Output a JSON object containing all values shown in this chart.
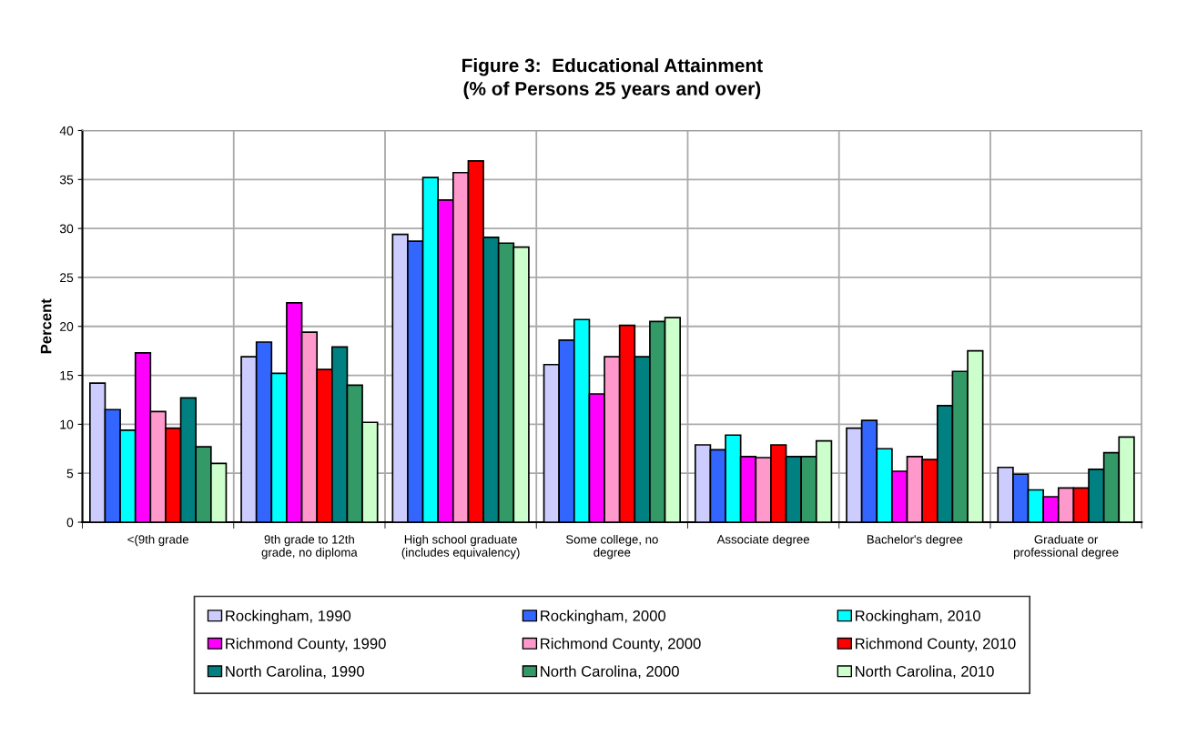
{
  "chart_data": {
    "type": "bar",
    "title": "Figure 3:  Educational Attainment\n(% of Persons 25 years and over)",
    "ylabel": "Percent",
    "categories": [
      "<(9th grade",
      "9th grade to 12th\ngrade, no diploma",
      "High school graduate\n(includes equivalency)",
      "Some college, no\ndegree",
      "Associate degree",
      "Bachelor's degree",
      "Graduate or\nprofessional degree"
    ],
    "series": [
      {
        "name": "Rockingham, 1990",
        "color": "#ccccff",
        "values": [
          14.2,
          16.9,
          29.4,
          16.1,
          7.9,
          9.6,
          5.6
        ]
      },
      {
        "name": "Rockingham, 2000",
        "color": "#3366ff",
        "values": [
          11.5,
          18.4,
          28.7,
          18.6,
          7.4,
          10.4,
          4.9
        ]
      },
      {
        "name": "Rockingham, 2010",
        "color": "#00ffff",
        "values": [
          9.4,
          15.2,
          35.2,
          20.7,
          8.9,
          7.5,
          3.3
        ]
      },
      {
        "name": "Richmond County, 1990",
        "color": "#ff00ff",
        "values": [
          17.3,
          22.4,
          32.9,
          13.1,
          6.7,
          5.2,
          2.6
        ]
      },
      {
        "name": "Richmond County, 2000",
        "color": "#ff99cc",
        "values": [
          11.3,
          19.4,
          35.7,
          16.9,
          6.6,
          6.7,
          3.5
        ]
      },
      {
        "name": "Richmond County, 2010",
        "color": "#ff0000",
        "values": [
          9.6,
          15.6,
          36.9,
          20.1,
          7.9,
          6.4,
          3.5
        ]
      },
      {
        "name": "North Carolina, 1990",
        "color": "#008080",
        "values": [
          12.7,
          17.9,
          29.1,
          16.9,
          6.7,
          11.9,
          5.4
        ]
      },
      {
        "name": "North Carolina, 2000",
        "color": "#339966",
        "values": [
          7.7,
          14.0,
          28.5,
          20.5,
          6.7,
          15.4,
          7.1
        ]
      },
      {
        "name": "North Carolina, 2010",
        "color": "#ccffcc",
        "values": [
          6.0,
          10.2,
          28.1,
          20.9,
          8.3,
          17.5,
          8.7
        ]
      }
    ],
    "ylim": [
      0,
      40
    ],
    "yticks": [
      0,
      5,
      10,
      15,
      20,
      25,
      30,
      35,
      40
    ],
    "grid": true,
    "legend": "bottom"
  }
}
